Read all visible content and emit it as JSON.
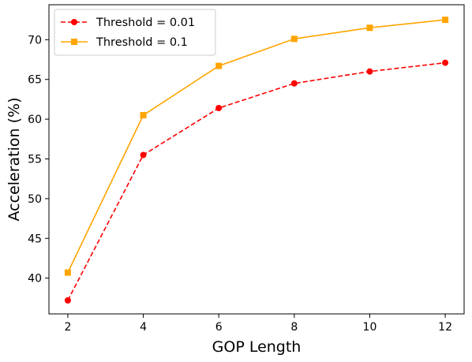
{
  "chart_data": {
    "type": "line",
    "title": "",
    "xlabel": "GOP Length",
    "ylabel": "Acceleration (%)",
    "x": [
      2,
      4,
      6,
      8,
      10,
      12
    ],
    "xticks": [
      "2",
      "4",
      "6",
      "8",
      "10",
      "12"
    ],
    "yticks": [
      "40",
      "45",
      "50",
      "55",
      "60",
      "65",
      "70"
    ],
    "xlim": [
      1.5,
      12.5
    ],
    "ylim": [
      35.5,
      74.4
    ],
    "grid": false,
    "legend_position": "top-left",
    "series": [
      {
        "name": "Threshold = 0.01",
        "values": [
          37.2,
          55.5,
          61.4,
          64.5,
          66.0,
          67.1
        ],
        "color": "#ff0000",
        "marker": "circle",
        "line_style": "dashed"
      },
      {
        "name": "Threshold = 0.1",
        "values": [
          40.7,
          60.5,
          66.7,
          70.1,
          71.5,
          72.5
        ],
        "color": "#ffa500",
        "marker": "square",
        "line_style": "solid"
      }
    ]
  }
}
